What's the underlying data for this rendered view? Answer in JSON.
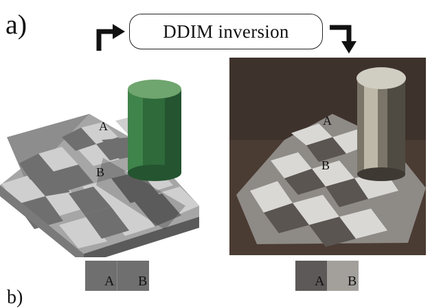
{
  "figure": {
    "panel_label": "a)",
    "process_label": "DDIM inversion",
    "input_image": {
      "label_a": "A",
      "label_b": "B"
    },
    "output_image": {
      "label_a": "A",
      "label_b": "B"
    },
    "input_swatch": {
      "label_a": "A",
      "label_b": "B",
      "color_a": "#6f6f6f",
      "color_b": "#6f6f6f"
    },
    "output_swatch": {
      "label_a": "A",
      "label_b": "B",
      "color_a": "#5d5958",
      "color_b": "#a3a09c"
    },
    "next_panel_label": "b)"
  }
}
